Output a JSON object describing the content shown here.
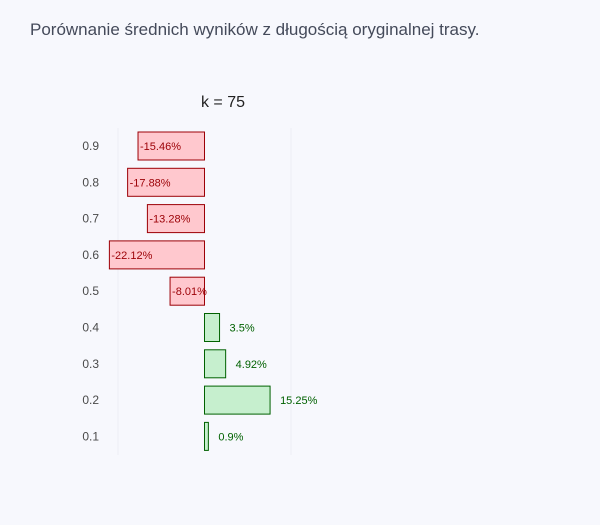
{
  "chart_data": {
    "type": "bar",
    "orientation": "horizontal",
    "title": "Porównanie średnich wyników z długością oryginalnej trasy.",
    "subtitle": "k = 75",
    "categories": [
      "0.9",
      "0.8",
      "0.7",
      "0.6",
      "0.5",
      "0.4",
      "0.3",
      "0.2",
      "0.1"
    ],
    "values": [
      -15.46,
      -17.88,
      -13.28,
      -22.12,
      -8.01,
      3.5,
      4.92,
      15.25,
      0.9
    ],
    "labels": [
      "-15.46%",
      "-17.88%",
      "-13.28%",
      "-22.12%",
      "-8.01%",
      "3.5%",
      "4.92%",
      "15.25%",
      "0.9%"
    ],
    "xlim": [
      -25,
      20
    ],
    "grid": false,
    "colors": {
      "negative_fill": "#ffc8ce",
      "negative_stroke": "#9c0006",
      "negative_text": "#9c0006",
      "positive_fill": "#c6efce",
      "positive_stroke": "#006100",
      "positive_text": "#006100"
    }
  }
}
